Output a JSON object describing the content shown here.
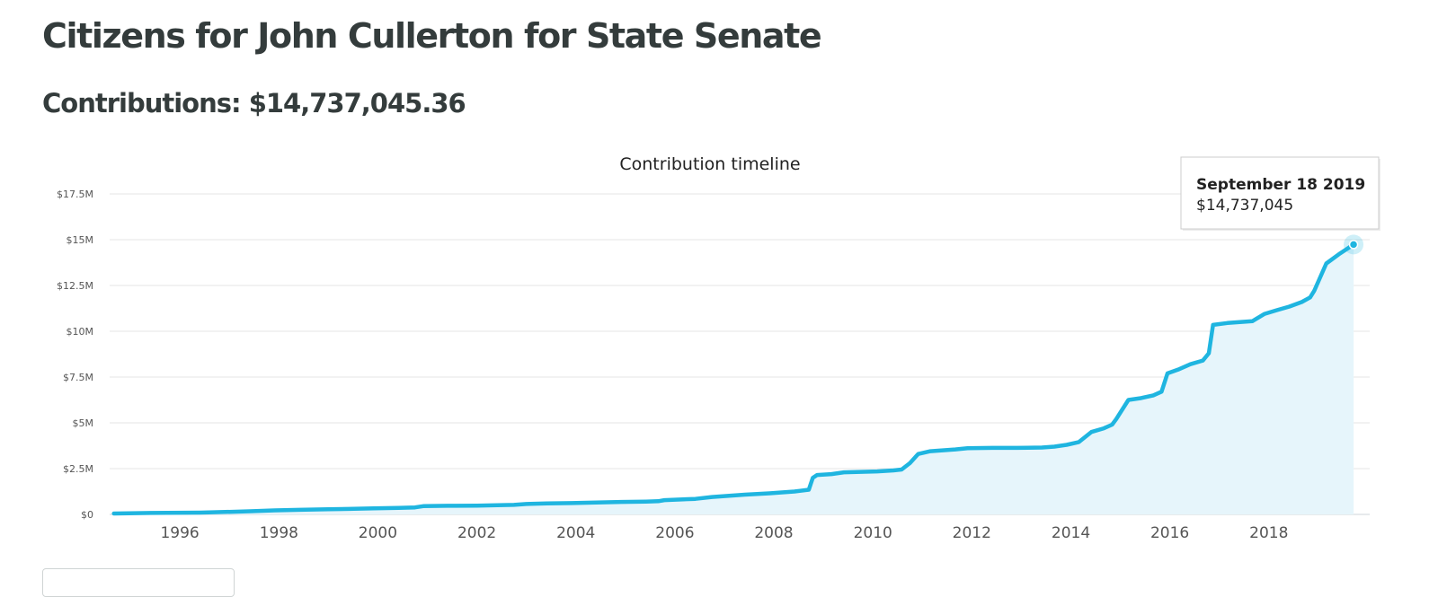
{
  "page": {
    "title": "Citizens for John Cullerton for State Senate",
    "contributions_label": "Contributions:",
    "contributions_total": "$14,737,045.36"
  },
  "chart_data": {
    "type": "area",
    "title": "Contribution timeline",
    "xlabel": "",
    "ylabel": "",
    "x_ticks": [
      "1996",
      "1998",
      "2000",
      "2002",
      "2004",
      "2006",
      "2008",
      "2010",
      "2012",
      "2014",
      "2016",
      "2018"
    ],
    "y_ticks": [
      "$0",
      "$2.5M",
      "$5M",
      "$7.5M",
      "$10M",
      "$12.5M",
      "$15M",
      "$17.5M"
    ],
    "y_tick_values": [
      0,
      2500000,
      5000000,
      7500000,
      10000000,
      12500000,
      15000000,
      17500000
    ],
    "ylim": [
      0,
      17500000
    ],
    "xlim": [
      "1994-08-01",
      "2020-01-15"
    ],
    "grid": true,
    "legend": "none",
    "colors": {
      "line": "#1fb5e0",
      "fill": "#e6f5fb",
      "grid": "#e6e6e6"
    },
    "series": [
      {
        "x": [
          "1994-09-01",
          "1995-06-01",
          "1996-06-01",
          "1996-12-01",
          "1997-06-01",
          "1997-12-01",
          "1998-06-01",
          "1999-01-01",
          "1999-06-01",
          "1999-12-01",
          "2000-06-01",
          "2000-10-01",
          "2000-12-01",
          "2001-06-01",
          "2002-01-01",
          "2002-06-01",
          "2002-10-01",
          "2003-01-01",
          "2003-06-01",
          "2003-12-01",
          "2004-06-01",
          "2004-12-01",
          "2005-06-01",
          "2005-09-01",
          "2005-10-15",
          "2006-06-01",
          "2006-10-01",
          "2007-01-01",
          "2007-06-01",
          "2007-12-01",
          "2008-03-01",
          "2008-06-01",
          "2008-09-15",
          "2008-10-15",
          "2008-11-15",
          "2009-03-01",
          "2009-06-01",
          "2009-09-01",
          "2010-02-01",
          "2010-06-01",
          "2010-08-01",
          "2010-10-01",
          "2010-12-01",
          "2011-03-01",
          "2011-06-01",
          "2011-09-01",
          "2011-12-01",
          "2012-06-01",
          "2012-12-01",
          "2013-06-01",
          "2013-09-01",
          "2013-12-01",
          "2014-03-01",
          "2014-06-01",
          "2014-09-01",
          "2014-11-01",
          "2014-12-01",
          "2015-03-01",
          "2015-06-01",
          "2015-09-01",
          "2015-11-01",
          "2015-12-15",
          "2016-03-01",
          "2016-06-01",
          "2016-09-01",
          "2016-10-15",
          "2016-11-15",
          "2017-03-01",
          "2017-06-01",
          "2017-09-01",
          "2017-12-01",
          "2018-03-01",
          "2018-06-01",
          "2018-09-01",
          "2018-11-01",
          "2018-12-01",
          "2019-03-01",
          "2019-06-01",
          "2019-09-18"
        ],
        "y": [
          50000,
          80000,
          100000,
          130000,
          170000,
          220000,
          250000,
          280000,
          300000,
          330000,
          360000,
          380000,
          450000,
          470000,
          480000,
          500000,
          520000,
          570000,
          600000,
          620000,
          650000,
          680000,
          700000,
          720000,
          780000,
          850000,
          950000,
          1000000,
          1080000,
          1150000,
          1200000,
          1250000,
          1350000,
          2000000,
          2150000,
          2200000,
          2300000,
          2320000,
          2350000,
          2400000,
          2450000,
          2800000,
          3300000,
          3450000,
          3500000,
          3550000,
          3620000,
          3630000,
          3630000,
          3650000,
          3700000,
          3800000,
          3950000,
          4500000,
          4700000,
          4900000,
          5200000,
          6250000,
          6350000,
          6500000,
          6700000,
          7700000,
          7900000,
          8200000,
          8400000,
          8800000,
          10350000,
          10450000,
          10500000,
          10550000,
          10950000,
          11150000,
          11350000,
          11600000,
          11850000,
          12200000,
          13700000,
          14200000,
          14737045
        ]
      }
    ],
    "tooltip": {
      "date": "September 18 2019",
      "value": "$14,737,045"
    }
  }
}
